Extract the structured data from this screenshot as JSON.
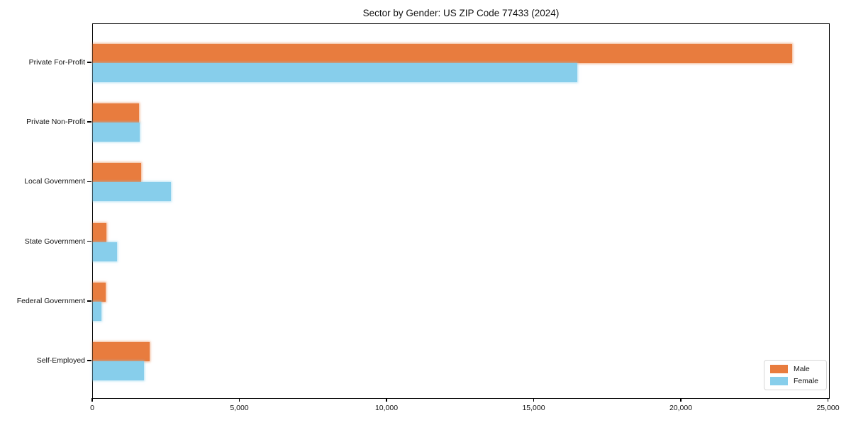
{
  "title": "Sector by Gender: US ZIP Code 77433 (2024)",
  "chart_data": {
    "type": "bar",
    "orientation": "horizontal",
    "title": "Sector by Gender: US ZIP Code 77433 (2024)",
    "xlabel": "",
    "ylabel": "",
    "categories": [
      "Private For-Profit",
      "Private Non-Profit",
      "Local Government",
      "State Government",
      "Federal Government",
      "Self-Employed"
    ],
    "series": [
      {
        "name": "Male",
        "color": "#e87c3e",
        "values": [
          23800,
          1580,
          1650,
          470,
          440,
          1940
        ]
      },
      {
        "name": "Female",
        "color": "#87ceeb",
        "values": [
          16500,
          1600,
          2660,
          830,
          290,
          1750
        ]
      }
    ],
    "xlim": [
      0,
      25060
    ],
    "xticks": [
      {
        "value": 0,
        "label": "0"
      },
      {
        "value": 5000,
        "label": "5,000"
      },
      {
        "value": 10000,
        "label": "10,000"
      },
      {
        "value": 15000,
        "label": "15,000"
      },
      {
        "value": 20000,
        "label": "20,000"
      },
      {
        "value": 25000,
        "label": "25,000"
      }
    ],
    "grid": false,
    "legend_position": "lower right"
  }
}
